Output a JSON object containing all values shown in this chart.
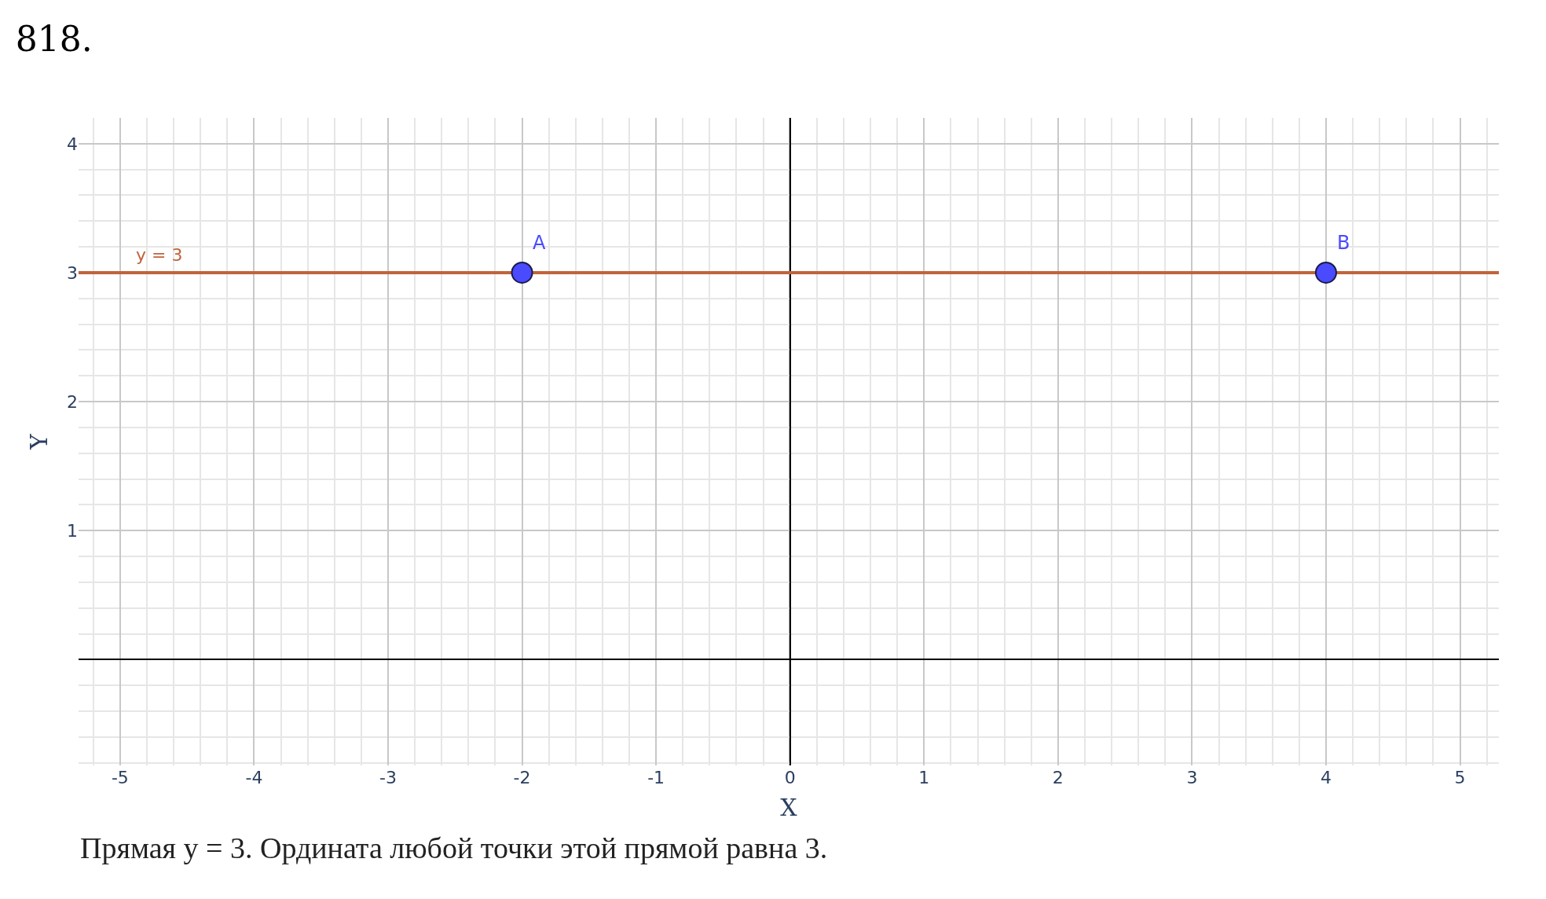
{
  "chart_data": {
    "type": "line",
    "title": "818.",
    "xlabel": "X",
    "ylabel": "Y",
    "xlim": [
      -5.31,
      5.29
    ],
    "ylim": [
      -0.82,
      4.2
    ],
    "xticks": [
      -5,
      -4,
      -3,
      -2,
      -1,
      0,
      1,
      2,
      3,
      4,
      5
    ],
    "yticks": [
      1,
      2,
      3,
      4
    ],
    "grid": true,
    "legend": false,
    "series": [
      {
        "name": "y = 3",
        "color": "#c0643a",
        "x": [
          -5.31,
          5.29
        ],
        "values": [
          3,
          3
        ],
        "marker": "none"
      },
      {
        "type": "scatter",
        "color": "#4a4aff",
        "x": [
          -2,
          4
        ],
        "values": [
          3,
          3
        ],
        "marker": "circle"
      }
    ],
    "annotations": [
      {
        "text": "A",
        "x": -2,
        "y": 3
      },
      {
        "text": "B",
        "x": 4,
        "y": 3
      },
      "Прямая y = 3. Ордината любой точки этой прямой равна 3."
    ]
  }
}
